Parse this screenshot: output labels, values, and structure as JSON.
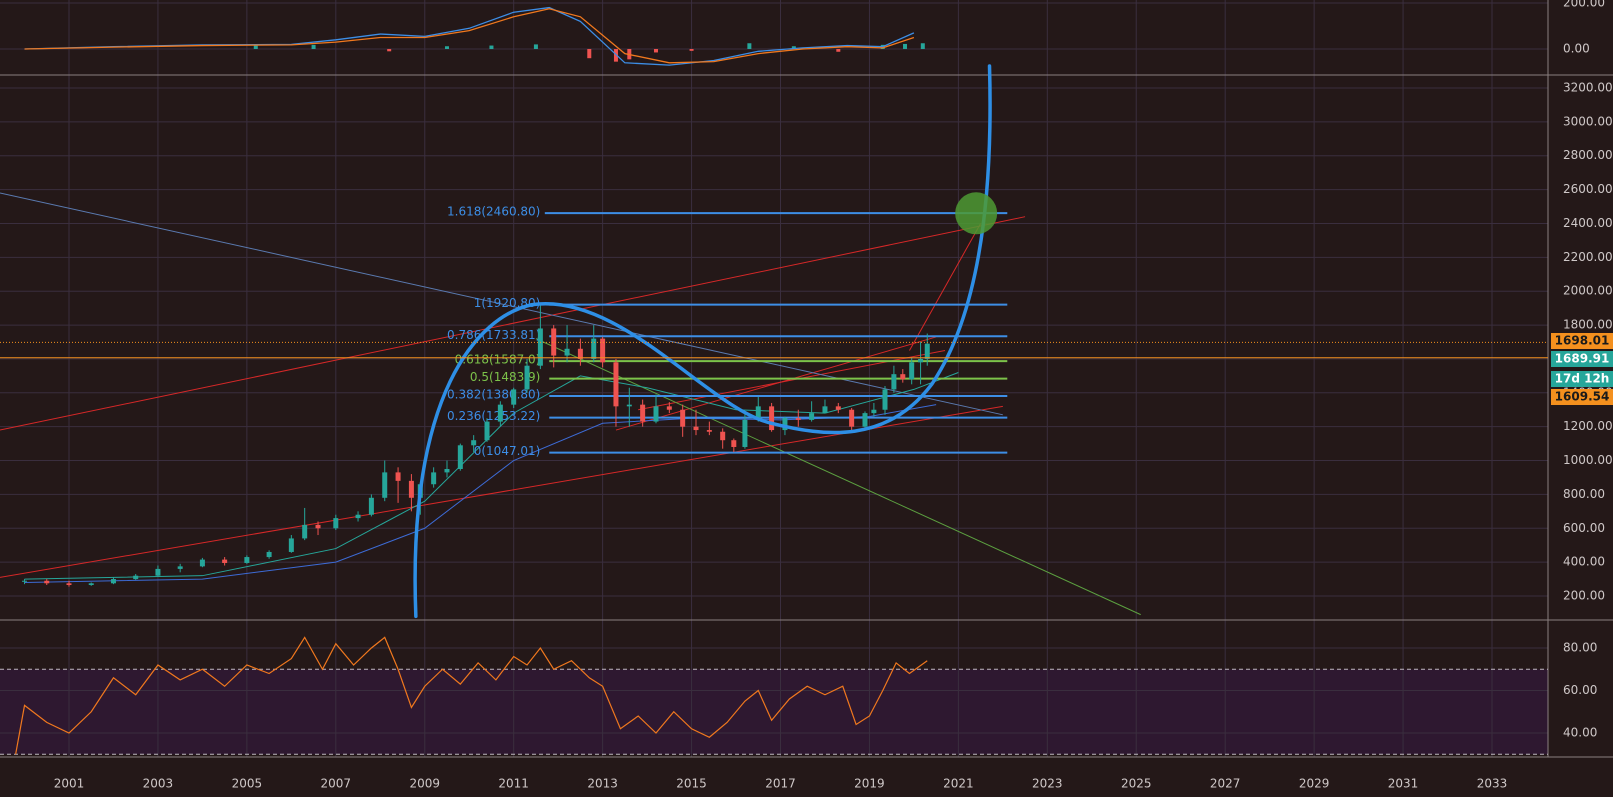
{
  "chart_data": [
    {
      "type": "line",
      "panel": "macd",
      "y_ticks": [
        "200.00",
        "0.00"
      ],
      "ylim": [
        -150,
        200
      ],
      "series": [
        {
          "color": "#3d8ee6",
          "x": [
            2000,
            2002,
            2004,
            2006,
            2007,
            2008,
            2009,
            2010,
            2011,
            2011.8,
            2012.5,
            2013.5,
            2014.5,
            2015.5,
            2016.5,
            2017.5,
            2018.5,
            2019.3,
            2020
          ],
          "y": [
            0,
            10,
            18,
            20,
            40,
            65,
            55,
            90,
            160,
            180,
            120,
            -60,
            -70,
            -50,
            -10,
            5,
            15,
            10,
            70
          ]
        },
        {
          "color": "#f0781e",
          "x": [
            2000,
            2002,
            2004,
            2006,
            2007,
            2008,
            2009,
            2010,
            2011,
            2011.8,
            2012.5,
            2013.5,
            2014.5,
            2015.5,
            2016.5,
            2017.5,
            2018.5,
            2019.3,
            2020
          ],
          "y": [
            0,
            8,
            15,
            18,
            30,
            50,
            50,
            80,
            140,
            175,
            140,
            -20,
            -60,
            -55,
            -20,
            0,
            10,
            5,
            50
          ]
        }
      ],
      "histogram": {
        "x": [
          2005.2,
          2006.5,
          2008.2,
          2009.5,
          2010.5,
          2011.5,
          2012.7,
          2013.3,
          2013.6,
          2014.2,
          2015.0,
          2016.3,
          2017.3,
          2018.3,
          2019.3,
          2019.8,
          2020.2
        ],
        "y": [
          20,
          18,
          -10,
          12,
          15,
          20,
          -40,
          -55,
          -45,
          -15,
          -8,
          25,
          12,
          -12,
          18,
          22,
          25
        ]
      }
    },
    {
      "type": "candlestick",
      "panel": "price",
      "y_ticks": [
        "3200.00",
        "3000.00",
        "2800.00",
        "2600.00",
        "2400.00",
        "2200.00",
        "2000.00",
        "1800.00",
        "1600.00",
        "1400.00",
        "1200.00",
        "1000.00",
        "800.00",
        "600.00",
        "400.00",
        "200.00"
      ],
      "ylim": [
        60,
        3290
      ],
      "price_badges": [
        {
          "label": "1698.01",
          "value": 1698.01,
          "bg": "#f4901e",
          "fg": "#1a1a1a"
        },
        {
          "label": "1689.91",
          "value": 1689.91,
          "bg": "#26a69a",
          "fg": "#ffffff"
        },
        {
          "label": "17d 12h",
          "value": 1570,
          "bg": "#26a69a",
          "fg": "#ffffff"
        },
        {
          "label": "1609.54",
          "value": 1500,
          "bg": "#f4901e",
          "fg": "#1a1a1a"
        }
      ],
      "fib_levels": [
        {
          "label": "1.618(2460.80)",
          "value": 2460.8,
          "color": "#3d8ee6"
        },
        {
          "label": "1(1920.80)",
          "value": 1920.8,
          "color": "#3d8ee6"
        },
        {
          "label": "0.786(1733.81)",
          "value": 1733.81,
          "color": "#3d8ee6"
        },
        {
          "label": "0.618(1587.0)",
          "value": 1587.0,
          "color": "#7cc24a"
        },
        {
          "label": "0.5(1483.9)",
          "value": 1483.9,
          "color": "#7cc24a"
        },
        {
          "label": "0.382(1380.80)",
          "value": 1380.8,
          "color": "#3d8ee6"
        },
        {
          "label": "0.236(1253.22)",
          "value": 1253.22,
          "color": "#3d8ee6"
        },
        {
          "label": "0(1047.01)",
          "value": 1047.01,
          "color": "#3d8ee6"
        }
      ],
      "candles_ohlc": [
        [
          2000.0,
          285,
          300,
          270,
          290
        ],
        [
          2000.5,
          290,
          300,
          265,
          275
        ],
        [
          2001.0,
          275,
          290,
          255,
          265
        ],
        [
          2001.5,
          265,
          280,
          260,
          275
        ],
        [
          2002.0,
          275,
          310,
          270,
          300
        ],
        [
          2002.5,
          300,
          330,
          295,
          320
        ],
        [
          2003.0,
          320,
          380,
          315,
          360
        ],
        [
          2003.5,
          360,
          390,
          340,
          375
        ],
        [
          2004.0,
          375,
          425,
          370,
          415
        ],
        [
          2004.5,
          415,
          430,
          380,
          395
        ],
        [
          2005.0,
          395,
          440,
          390,
          430
        ],
        [
          2005.5,
          430,
          470,
          420,
          460
        ],
        [
          2006.0,
          460,
          560,
          455,
          540
        ],
        [
          2006.3,
          540,
          720,
          530,
          620
        ],
        [
          2006.6,
          620,
          640,
          560,
          600
        ],
        [
          2007.0,
          600,
          680,
          590,
          660
        ],
        [
          2007.5,
          660,
          700,
          640,
          680
        ],
        [
          2007.8,
          680,
          800,
          670,
          780
        ],
        [
          2008.1,
          780,
          1000,
          760,
          930
        ],
        [
          2008.4,
          930,
          960,
          750,
          880
        ],
        [
          2008.7,
          880,
          920,
          700,
          780
        ],
        [
          2008.9,
          780,
          870,
          680,
          860
        ],
        [
          2009.2,
          860,
          960,
          840,
          930
        ],
        [
          2009.5,
          930,
          1000,
          900,
          950
        ],
        [
          2009.8,
          950,
          1100,
          940,
          1090
        ],
        [
          2010.1,
          1090,
          1150,
          1050,
          1120
        ],
        [
          2010.4,
          1120,
          1250,
          1110,
          1230
        ],
        [
          2010.7,
          1230,
          1350,
          1200,
          1330
        ],
        [
          2011.0,
          1330,
          1430,
          1310,
          1420
        ],
        [
          2011.3,
          1420,
          1600,
          1400,
          1560
        ],
        [
          2011.6,
          1560,
          1920,
          1540,
          1780
        ],
        [
          2011.9,
          1780,
          1800,
          1550,
          1620
        ],
        [
          2012.2,
          1620,
          1800,
          1580,
          1660
        ],
        [
          2012.5,
          1660,
          1720,
          1560,
          1600
        ],
        [
          2012.8,
          1600,
          1800,
          1580,
          1720
        ],
        [
          2013.0,
          1720,
          1730,
          1550,
          1580
        ],
        [
          2013.3,
          1580,
          1600,
          1200,
          1320
        ],
        [
          2013.6,
          1320,
          1430,
          1200,
          1330
        ],
        [
          2013.9,
          1330,
          1360,
          1200,
          1230
        ],
        [
          2014.2,
          1230,
          1390,
          1220,
          1320
        ],
        [
          2014.5,
          1320,
          1345,
          1280,
          1300
        ],
        [
          2014.8,
          1300,
          1330,
          1140,
          1200
        ],
        [
          2015.1,
          1200,
          1300,
          1150,
          1180
        ],
        [
          2015.4,
          1180,
          1230,
          1150,
          1170
        ],
        [
          2015.7,
          1170,
          1190,
          1070,
          1120
        ],
        [
          2015.95,
          1120,
          1130,
          1050,
          1080
        ],
        [
          2016.2,
          1080,
          1280,
          1070,
          1240
        ],
        [
          2016.5,
          1240,
          1375,
          1230,
          1320
        ],
        [
          2016.8,
          1320,
          1340,
          1170,
          1180
        ],
        [
          2017.1,
          1180,
          1260,
          1150,
          1250
        ],
        [
          2017.4,
          1250,
          1300,
          1200,
          1240
        ],
        [
          2017.7,
          1240,
          1350,
          1230,
          1280
        ],
        [
          2018.0,
          1280,
          1360,
          1300,
          1320
        ],
        [
          2018.3,
          1320,
          1340,
          1280,
          1300
        ],
        [
          2018.6,
          1300,
          1310,
          1170,
          1200
        ],
        [
          2018.9,
          1200,
          1290,
          1180,
          1280
        ],
        [
          2019.1,
          1280,
          1340,
          1260,
          1300
        ],
        [
          2019.35,
          1300,
          1440,
          1270,
          1420
        ],
        [
          2019.55,
          1420,
          1560,
          1400,
          1510
        ],
        [
          2019.75,
          1510,
          1540,
          1460,
          1480
        ],
        [
          2019.95,
          1480,
          1610,
          1450,
          1580
        ],
        [
          2020.15,
          1580,
          1700,
          1450,
          1600
        ],
        [
          2020.3,
          1600,
          1750,
          1560,
          1690
        ]
      ]
    },
    {
      "type": "line",
      "panel": "rsi",
      "y_ticks": [
        "80.00",
        "60.00",
        "40.00"
      ],
      "ylim": [
        27,
        93
      ],
      "levels": [
        70,
        30
      ],
      "series": [
        {
          "color": "#f0781e",
          "x": [
            1999.8,
            2000.0,
            2000.5,
            2001.0,
            2001.5,
            2002.0,
            2002.5,
            2003.0,
            2003.5,
            2004.0,
            2004.5,
            2005.0,
            2005.5,
            2006.0,
            2006.3,
            2006.7,
            2007.0,
            2007.4,
            2007.8,
            2008.1,
            2008.4,
            2008.7,
            2009.0,
            2009.4,
            2009.8,
            2010.2,
            2010.6,
            2011.0,
            2011.3,
            2011.6,
            2011.9,
            2012.3,
            2012.7,
            2013.0,
            2013.4,
            2013.8,
            2014.2,
            2014.6,
            2015.0,
            2015.4,
            2015.8,
            2016.2,
            2016.5,
            2016.8,
            2017.2,
            2017.6,
            2018.0,
            2018.4,
            2018.7,
            2019.0,
            2019.3,
            2019.6,
            2019.9,
            2020.3
          ],
          "y": [
            30,
            53,
            45,
            40,
            50,
            66,
            58,
            72,
            65,
            70,
            62,
            72,
            68,
            75,
            85,
            70,
            82,
            72,
            80,
            85,
            70,
            52,
            62,
            70,
            63,
            73,
            65,
            76,
            72,
            80,
            70,
            74,
            66,
            62,
            42,
            48,
            40,
            50,
            42,
            38,
            45,
            55,
            60,
            46,
            56,
            62,
            58,
            62,
            44,
            48,
            60,
            73,
            68,
            74
          ]
        }
      ]
    }
  ],
  "x_axis": {
    "ticks": [
      "2001",
      "2003",
      "2005",
      "2007",
      "2009",
      "2011",
      "2013",
      "2015",
      "2017",
      "2019",
      "2021",
      "2023",
      "2025",
      "2027",
      "2029",
      "2031",
      "2033"
    ]
  }
}
